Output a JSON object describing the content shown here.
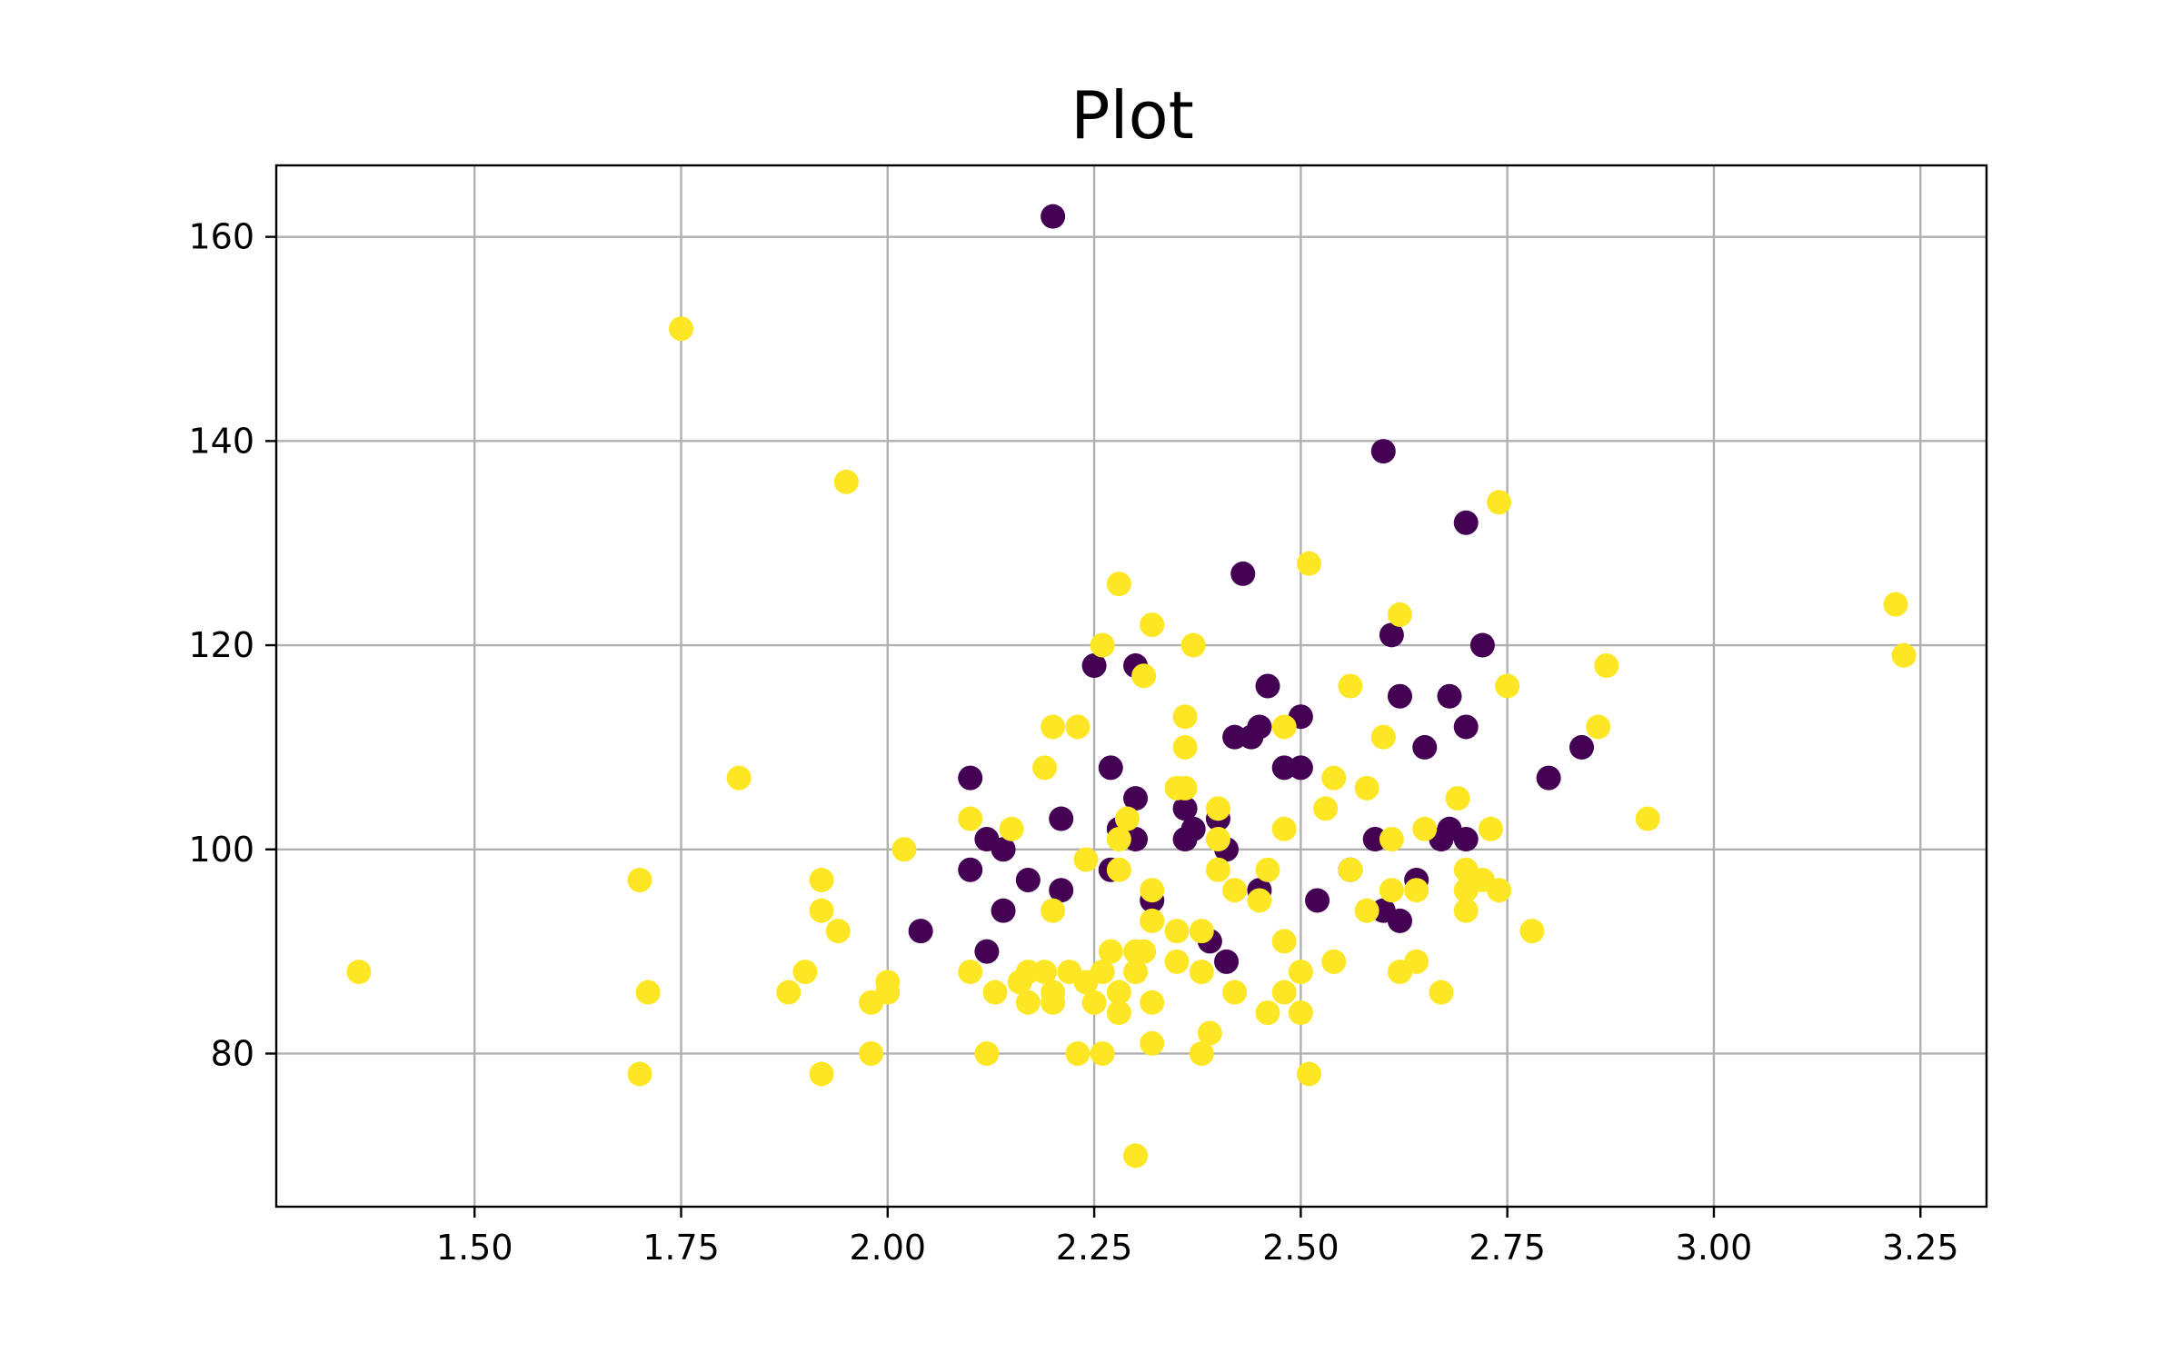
{
  "chart_data": {
    "type": "scatter",
    "title": "Plot",
    "xlabel": "",
    "ylabel": "",
    "xlim": [
      1.26,
      3.33
    ],
    "ylim": [
      65,
      167
    ],
    "xticks": [
      "1.50",
      "1.75",
      "2.00",
      "2.25",
      "2.50",
      "2.75",
      "3.00",
      "3.25"
    ],
    "yticks": [
      "80",
      "100",
      "120",
      "140",
      "160"
    ],
    "grid": true,
    "legend": "none",
    "colors": {
      "class_0": "#440154",
      "class_1": "#fde725"
    },
    "series": [
      {
        "class": 0,
        "color": "#440154",
        "points": [
          [
            2.2,
            162
          ],
          [
            2.6,
            139
          ],
          [
            2.7,
            132
          ],
          [
            2.43,
            127
          ],
          [
            2.61,
            121
          ],
          [
            2.72,
            120
          ],
          [
            2.25,
            118
          ],
          [
            2.3,
            118
          ],
          [
            2.46,
            116
          ],
          [
            2.62,
            115
          ],
          [
            2.68,
            115
          ],
          [
            2.45,
            112
          ],
          [
            2.5,
            113
          ],
          [
            2.7,
            112
          ],
          [
            2.42,
            111
          ],
          [
            2.44,
            111
          ],
          [
            2.65,
            110
          ],
          [
            2.84,
            110
          ],
          [
            2.27,
            108
          ],
          [
            2.48,
            108
          ],
          [
            2.5,
            108
          ],
          [
            2.1,
            107
          ],
          [
            2.8,
            107
          ],
          [
            2.3,
            105
          ],
          [
            2.36,
            104
          ],
          [
            2.4,
            103
          ],
          [
            2.21,
            103
          ],
          [
            2.28,
            102
          ],
          [
            2.37,
            102
          ],
          [
            2.68,
            102
          ],
          [
            2.12,
            101
          ],
          [
            2.3,
            101
          ],
          [
            2.36,
            101
          ],
          [
            2.59,
            101
          ],
          [
            2.67,
            101
          ],
          [
            2.7,
            101
          ],
          [
            2.14,
            100
          ],
          [
            2.41,
            100
          ],
          [
            2.1,
            98
          ],
          [
            2.27,
            98
          ],
          [
            2.56,
            98
          ],
          [
            2.17,
            97
          ],
          [
            2.64,
            97
          ],
          [
            2.21,
            96
          ],
          [
            2.45,
            96
          ],
          [
            2.32,
            95
          ],
          [
            2.52,
            95
          ],
          [
            2.14,
            94
          ],
          [
            2.6,
            94
          ],
          [
            2.62,
            93
          ],
          [
            2.04,
            92
          ],
          [
            2.39,
            91
          ],
          [
            2.12,
            90
          ],
          [
            2.41,
            89
          ]
        ]
      },
      {
        "class": 1,
        "color": "#fde725",
        "points": [
          [
            1.75,
            151
          ],
          [
            1.95,
            136
          ],
          [
            2.74,
            134
          ],
          [
            2.51,
            128
          ],
          [
            2.28,
            126
          ],
          [
            3.22,
            124
          ],
          [
            2.62,
            123
          ],
          [
            2.32,
            122
          ],
          [
            2.26,
            120
          ],
          [
            2.37,
            120
          ],
          [
            3.23,
            119
          ],
          [
            2.87,
            118
          ],
          [
            2.31,
            117
          ],
          [
            2.56,
            116
          ],
          [
            2.75,
            116
          ],
          [
            2.36,
            113
          ],
          [
            2.2,
            112
          ],
          [
            2.23,
            112
          ],
          [
            2.48,
            112
          ],
          [
            2.86,
            112
          ],
          [
            2.6,
            111
          ],
          [
            2.36,
            110
          ],
          [
            2.19,
            108
          ],
          [
            1.82,
            107
          ],
          [
            2.54,
            107
          ],
          [
            2.35,
            106
          ],
          [
            2.36,
            106
          ],
          [
            2.58,
            106
          ],
          [
            2.69,
            105
          ],
          [
            2.53,
            104
          ],
          [
            2.4,
            104
          ],
          [
            2.1,
            103
          ],
          [
            2.29,
            103
          ],
          [
            2.92,
            103
          ],
          [
            2.15,
            102
          ],
          [
            2.48,
            102
          ],
          [
            2.65,
            102
          ],
          [
            2.73,
            102
          ],
          [
            2.28,
            101
          ],
          [
            2.4,
            101
          ],
          [
            2.61,
            101
          ],
          [
            2.02,
            100
          ],
          [
            2.24,
            99
          ],
          [
            2.28,
            98
          ],
          [
            2.4,
            98
          ],
          [
            2.46,
            98
          ],
          [
            2.56,
            98
          ],
          [
            2.7,
            98
          ],
          [
            1.7,
            97
          ],
          [
            1.92,
            97
          ],
          [
            2.72,
            97
          ],
          [
            2.32,
            96
          ],
          [
            2.42,
            96
          ],
          [
            2.61,
            96
          ],
          [
            2.64,
            96
          ],
          [
            2.7,
            96
          ],
          [
            2.74,
            96
          ],
          [
            2.45,
            95
          ],
          [
            1.92,
            94
          ],
          [
            2.2,
            94
          ],
          [
            2.58,
            94
          ],
          [
            2.7,
            94
          ],
          [
            2.32,
            93
          ],
          [
            1.94,
            92
          ],
          [
            2.35,
            92
          ],
          [
            2.38,
            92
          ],
          [
            2.78,
            92
          ],
          [
            2.48,
            91
          ],
          [
            2.27,
            90
          ],
          [
            2.3,
            90
          ],
          [
            2.31,
            90
          ],
          [
            2.35,
            89
          ],
          [
            2.54,
            89
          ],
          [
            2.64,
            89
          ],
          [
            1.36,
            88
          ],
          [
            1.9,
            88
          ],
          [
            2.1,
            88
          ],
          [
            2.17,
            88
          ],
          [
            2.19,
            88
          ],
          [
            2.22,
            88
          ],
          [
            2.26,
            88
          ],
          [
            2.3,
            88
          ],
          [
            2.38,
            88
          ],
          [
            2.5,
            88
          ],
          [
            2.62,
            88
          ],
          [
            2.0,
            87
          ],
          [
            2.16,
            87
          ],
          [
            2.24,
            87
          ],
          [
            1.71,
            86
          ],
          [
            1.88,
            86
          ],
          [
            2.0,
            86
          ],
          [
            2.13,
            86
          ],
          [
            2.2,
            86
          ],
          [
            2.28,
            86
          ],
          [
            2.42,
            86
          ],
          [
            2.48,
            86
          ],
          [
            2.67,
            86
          ],
          [
            1.98,
            85
          ],
          [
            2.17,
            85
          ],
          [
            2.2,
            85
          ],
          [
            2.25,
            85
          ],
          [
            2.32,
            85
          ],
          [
            2.28,
            84
          ],
          [
            2.46,
            84
          ],
          [
            2.5,
            84
          ],
          [
            2.39,
            82
          ],
          [
            2.32,
            81
          ],
          [
            1.98,
            80
          ],
          [
            2.12,
            80
          ],
          [
            2.23,
            80
          ],
          [
            2.26,
            80
          ],
          [
            2.38,
            80
          ],
          [
            1.7,
            78
          ],
          [
            1.92,
            78
          ],
          [
            2.51,
            78
          ],
          [
            2.3,
            70
          ]
        ]
      }
    ]
  }
}
